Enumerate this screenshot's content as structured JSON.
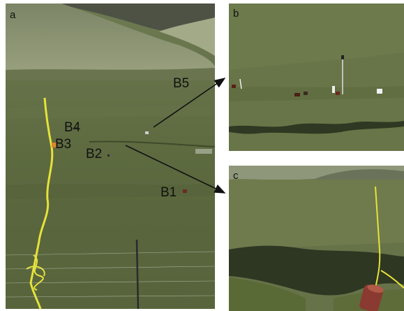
{
  "panels": {
    "a": {
      "letter": "a"
    },
    "b": {
      "letter": "b"
    },
    "c": {
      "letter": "c"
    }
  },
  "plot_labels": {
    "b5": "B5",
    "b4": "B4",
    "b3": "B3",
    "b2": "B2",
    "b1": "B1"
  },
  "colors": {
    "grass": "#5f6b45",
    "grass_dark": "#48532f",
    "hill": "#8a9470",
    "sky_hill": "#6f775e",
    "cable": "#e6e23a",
    "arrow": "#111111"
  }
}
